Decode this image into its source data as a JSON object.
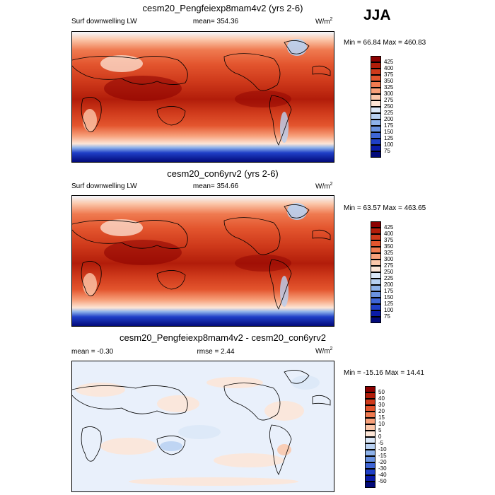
{
  "season": "JJA",
  "panels": [
    {
      "title": "cesm20_Pengfeiexp8mam4v2 (yrs 2-6)",
      "left_label": "Surf downwelling LW",
      "center_label": "mean= 354.36",
      "units": "W/m",
      "units_sup": "2",
      "minmax": "Min =  66.84 Max = 460.83",
      "colorbar": {
        "ticks": [
          "425",
          "400",
          "375",
          "350",
          "325",
          "300",
          "275",
          "250",
          "225",
          "200",
          "175",
          "150",
          "125",
          "100",
          "75"
        ],
        "colors": [
          "#8b0000",
          "#b21d0a",
          "#cf3a1b",
          "#e3552e",
          "#ef7a50",
          "#f7a07a",
          "#fbc7aa",
          "#fde6d7",
          "#dbe8f8",
          "#b8d1f2",
          "#8eb2ea",
          "#6a92e0",
          "#3f66d6",
          "#1f3fc7",
          "#0a1ba8",
          "#020a7a"
        ]
      }
    },
    {
      "title": "cesm20_con6yrv2 (yrs 2-6)",
      "left_label": "Surf downwelling LW",
      "center_label": "mean= 354.66",
      "units": "W/m",
      "units_sup": "2",
      "minmax": "Min =  63.57 Max = 463.65",
      "colorbar": {
        "ticks": [
          "425",
          "400",
          "375",
          "350",
          "325",
          "300",
          "275",
          "250",
          "225",
          "200",
          "175",
          "150",
          "125",
          "100",
          "75"
        ],
        "colors": [
          "#8b0000",
          "#b21d0a",
          "#cf3a1b",
          "#e3552e",
          "#ef7a50",
          "#f7a07a",
          "#fbc7aa",
          "#fde6d7",
          "#dbe8f8",
          "#b8d1f2",
          "#8eb2ea",
          "#6a92e0",
          "#3f66d6",
          "#1f3fc7",
          "#0a1ba8",
          "#020a7a"
        ]
      }
    },
    {
      "title": "cesm20_Pengfeiexp8mam4v2 - cesm20_con6yrv2",
      "left_label": "mean =  -0.30",
      "center_label": "rmse =   2.44",
      "units": "W/m",
      "units_sup": "2",
      "minmax": "Min = -15.16 Max =  14.41",
      "colorbar": {
        "ticks": [
          "50",
          "40",
          "30",
          "20",
          "15",
          "10",
          "5",
          "0",
          "-5",
          "-10",
          "-15",
          "-20",
          "-30",
          "-40",
          "-50"
        ],
        "colors": [
          "#8b0000",
          "#b21d0a",
          "#cf3a1b",
          "#e3552e",
          "#ef7a50",
          "#f7a07a",
          "#fbc7aa",
          "#fde6d7",
          "#dbe8f8",
          "#b8d1f2",
          "#8eb2ea",
          "#6a92e0",
          "#3f66d6",
          "#1f3fc7",
          "#0a1ba8",
          "#020a7a"
        ]
      }
    }
  ]
}
